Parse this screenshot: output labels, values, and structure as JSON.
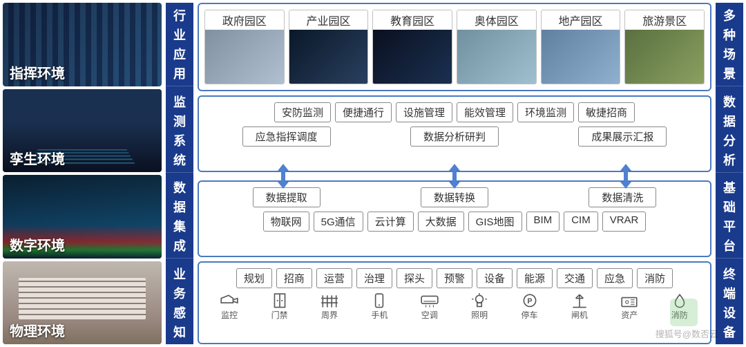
{
  "colors": {
    "primary": "#1a3a8c",
    "border": "#4a7ac0",
    "arrow": "#5080d0"
  },
  "left_envs": [
    {
      "label": "指挥环境",
      "cls": "zhihui",
      "decor": "screens"
    },
    {
      "label": "孪生环境",
      "cls": "luansheng",
      "decor": "road"
    },
    {
      "label": "数字环境",
      "cls": "shuzi",
      "decor": "digital"
    },
    {
      "label": "物理环境",
      "cls": "wuli",
      "decor": "building"
    }
  ],
  "left_vlabels": [
    "行业应用",
    "监测系统",
    "数据集成",
    "业务感知"
  ],
  "right_vlabels": [
    "多种场景",
    "数据分析",
    "基础平台",
    "终端设备"
  ],
  "apps": [
    {
      "title": "政府园区",
      "cls": "gov"
    },
    {
      "title": "产业园区",
      "cls": "ind"
    },
    {
      "title": "教育园区",
      "cls": "edu"
    },
    {
      "title": "奥体园区",
      "cls": "sport"
    },
    {
      "title": "地产园区",
      "cls": "estate"
    },
    {
      "title": "旅游景区",
      "cls": "tour"
    }
  ],
  "monitor_top": [
    "安防监测",
    "便捷通行",
    "设施管理",
    "能效管理",
    "环境监测",
    "敏捷招商"
  ],
  "monitor_bottom": [
    "应急指挥调度",
    "数据分析研判",
    "成果展示汇报"
  ],
  "data_top": [
    "数据提取",
    "数据转换",
    "数据清洗"
  ],
  "data_bottom": [
    "物联网",
    "5G通信",
    "云计算",
    "大数据",
    "GIS地图",
    "BIM",
    "CIM",
    "VRAR"
  ],
  "sense_top": [
    "规划",
    "招商",
    "运营",
    "治理",
    "探头",
    "预警",
    "设备",
    "能源",
    "交通",
    "应急",
    "消防"
  ],
  "sense_icons": [
    {
      "label": "监控",
      "icon": "camera"
    },
    {
      "label": "门禁",
      "icon": "door"
    },
    {
      "label": "周界",
      "icon": "fence"
    },
    {
      "label": "手机",
      "icon": "phone"
    },
    {
      "label": "空调",
      "icon": "ac"
    },
    {
      "label": "照明",
      "icon": "light"
    },
    {
      "label": "停车",
      "icon": "park"
    },
    {
      "label": "闸机",
      "icon": "gate"
    },
    {
      "label": "资产",
      "icon": "asset"
    },
    {
      "label": "消防",
      "icon": "fire"
    }
  ],
  "watermark": "搜狐号@数否云"
}
